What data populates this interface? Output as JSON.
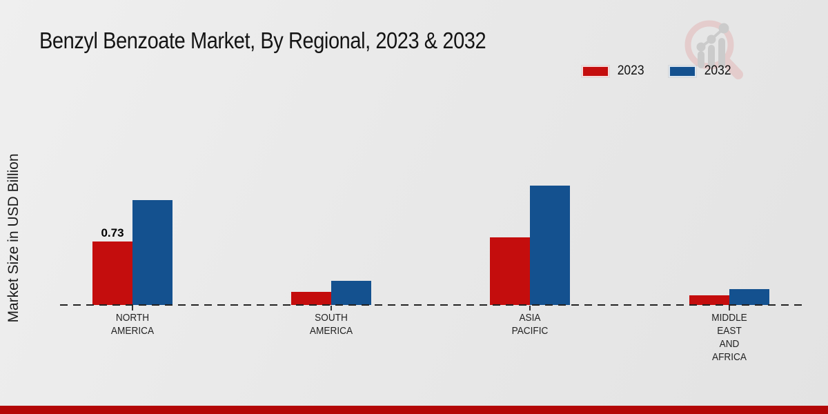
{
  "page": {
    "title": "Benzyl Benzoate Market, By Regional, 2023 & 2032",
    "footer_band_color": "#b30707"
  },
  "chart_data": {
    "type": "bar",
    "title": "Benzyl Benzoate Market, By Regional, 2023 & 2032",
    "ylabel": "Market Size in USD Billion",
    "xlabel": "",
    "categories": [
      "NORTH\nAMERICA",
      "SOUTH\nAMERICA",
      "ASIA\nPACIFIC",
      "MIDDLE\nEAST\nAND\nAFRICA"
    ],
    "series": [
      {
        "name": "2023",
        "color": "#c40d0d",
        "values": [
          0.73,
          0.15,
          0.78,
          0.11
        ],
        "data_labels": [
          "0.73",
          null,
          null,
          null
        ]
      },
      {
        "name": "2032",
        "color": "#14518f",
        "values": [
          1.21,
          0.28,
          1.37,
          0.18
        ],
        "data_labels": [
          null,
          null,
          null,
          null
        ]
      }
    ],
    "ylim": [
      0,
      1.6
    ],
    "grid": false,
    "legend_position": "top-right",
    "baseline_style": "dashed",
    "annotations": [
      "0.73"
    ]
  }
}
